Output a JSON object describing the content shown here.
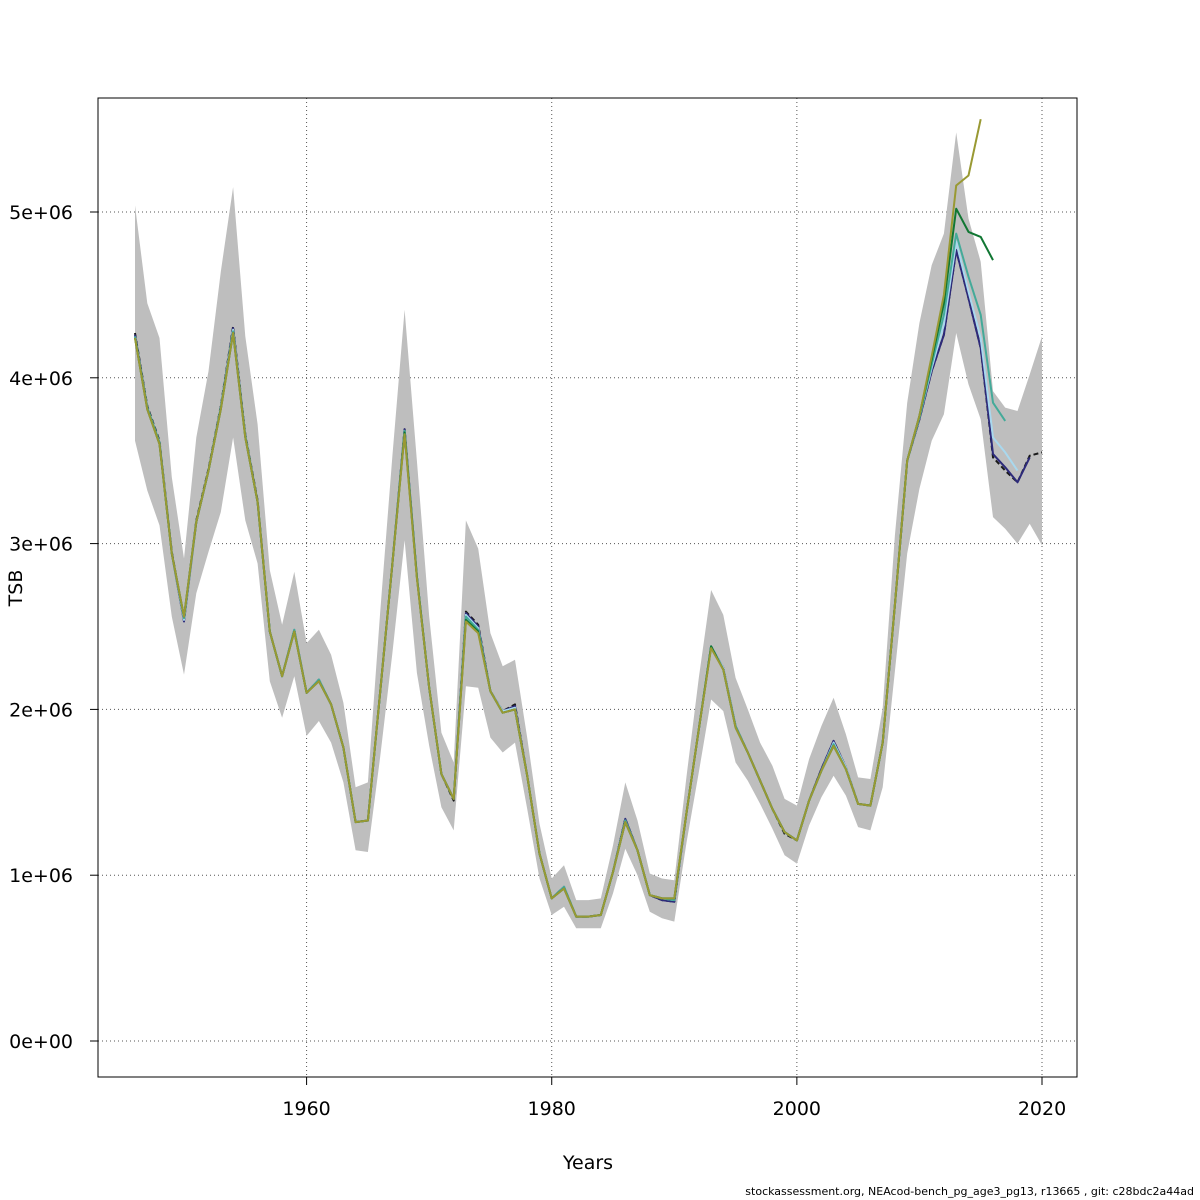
{
  "footer": "stockassessment.org, NEAcod-bench_pg_age3_pg13, r13665 , git: c28bdc2a44ad",
  "chart_data": {
    "type": "line",
    "xlabel": "Years",
    "ylabel": "TSB",
    "xlim": [
      1946,
      2020
    ],
    "ylim": [
      0,
      5600000
    ],
    "x_ticks": [
      1960,
      1980,
      2000,
      2020
    ],
    "y_ticks": [
      0,
      1000000,
      2000000,
      3000000,
      4000000,
      5000000
    ],
    "y_tick_labels": [
      "0e+00",
      "1e+06",
      "2e+06",
      "3e+06",
      "4e+06",
      "5e+06"
    ],
    "grid": true,
    "band_color": "#bebebe",
    "years": [
      1946,
      1947,
      1948,
      1949,
      1950,
      1951,
      1952,
      1953,
      1954,
      1955,
      1956,
      1957,
      1958,
      1959,
      1960,
      1961,
      1962,
      1963,
      1964,
      1965,
      1966,
      1967,
      1968,
      1969,
      1970,
      1971,
      1972,
      1973,
      1974,
      1975,
      1976,
      1977,
      1978,
      1979,
      1980,
      1981,
      1982,
      1983,
      1984,
      1985,
      1986,
      1987,
      1988,
      1989,
      1990,
      1991,
      1992,
      1993,
      1994,
      1995,
      1996,
      1997,
      1998,
      1999,
      2000,
      2001,
      2002,
      2003,
      2004,
      2005,
      2006,
      2007,
      2008,
      2009,
      2010,
      2011,
      2012,
      2013,
      2014,
      2015,
      2016,
      2017,
      2018,
      2019,
      2020
    ],
    "estimate": [
      4270000,
      3830000,
      3620000,
      2950000,
      2540000,
      3140000,
      3450000,
      3830000,
      4310000,
      3660000,
      3260000,
      2470000,
      2200000,
      2480000,
      2100000,
      2180000,
      2030000,
      1770000,
      1320000,
      1330000,
      2100000,
      2880000,
      3690000,
      2800000,
      2130000,
      1610000,
      1450000,
      2590000,
      2510000,
      2110000,
      1990000,
      2030000,
      1600000,
      1130000,
      860000,
      930000,
      750000,
      750000,
      760000,
      1020000,
      1340000,
      1150000,
      880000,
      850000,
      840000,
      1380000,
      1880000,
      2380000,
      2250000,
      1900000,
      1740000,
      1570000,
      1400000,
      1250000,
      1210000,
      1450000,
      1640000,
      1810000,
      1650000,
      1430000,
      1420000,
      1800000,
      2630000,
      3500000,
      3750000,
      4040000,
      4260000,
      4770000,
      4480000,
      4180000,
      3520000,
      3440000,
      3370000,
      3530000,
      3550000
    ],
    "lower": [
      3620000,
      3320000,
      3110000,
      2560000,
      2210000,
      2700000,
      2950000,
      3190000,
      3640000,
      3140000,
      2880000,
      2170000,
      1950000,
      2200000,
      1840000,
      1930000,
      1800000,
      1560000,
      1150000,
      1140000,
      1710000,
      2340000,
      3020000,
      2220000,
      1780000,
      1410000,
      1270000,
      2140000,
      2130000,
      1830000,
      1740000,
      1800000,
      1400000,
      980000,
      760000,
      810000,
      680000,
      680000,
      680000,
      890000,
      1160000,
      1000000,
      780000,
      740000,
      720000,
      1200000,
      1620000,
      2060000,
      1990000,
      1680000,
      1570000,
      1430000,
      1280000,
      1120000,
      1070000,
      1300000,
      1470000,
      1600000,
      1480000,
      1290000,
      1270000,
      1530000,
      2230000,
      2940000,
      3330000,
      3620000,
      3780000,
      4270000,
      3960000,
      3750000,
      3160000,
      3090000,
      3000000,
      3120000,
      2990000
    ],
    "upper": [
      5040000,
      4450000,
      4240000,
      3400000,
      2910000,
      3640000,
      4040000,
      4640000,
      5150000,
      4250000,
      3720000,
      2840000,
      2510000,
      2830000,
      2400000,
      2480000,
      2330000,
      2040000,
      1530000,
      1560000,
      2580000,
      3530000,
      4410000,
      3500000,
      2560000,
      1860000,
      1680000,
      3140000,
      2970000,
      2460000,
      2260000,
      2300000,
      1830000,
      1310000,
      980000,
      1060000,
      850000,
      850000,
      860000,
      1180000,
      1560000,
      1330000,
      1010000,
      980000,
      970000,
      1600000,
      2190000,
      2720000,
      2570000,
      2190000,
      2000000,
      1800000,
      1660000,
      1460000,
      1420000,
      1700000,
      1900000,
      2070000,
      1850000,
      1590000,
      1580000,
      2010000,
      3050000,
      3850000,
      4330000,
      4680000,
      4870000,
      5480000,
      4960000,
      4700000,
      3920000,
      3820000,
      3800000,
      4020000,
      4250000
    ],
    "series": [
      {
        "color": "#1a1a1a",
        "dash": true,
        "start": 1946,
        "values": [
          4270000,
          3830000,
          3620000,
          2950000,
          2540000,
          3140000,
          3450000,
          3830000,
          4310000,
          3660000,
          3260000,
          2470000,
          2200000,
          2480000,
          2100000,
          2180000,
          2030000,
          1770000,
          1320000,
          1330000,
          2100000,
          2880000,
          3690000,
          2800000,
          2130000,
          1610000,
          1450000,
          2590000,
          2510000,
          2110000,
          1990000,
          2030000,
          1600000,
          1130000,
          860000,
          930000,
          750000,
          750000,
          760000,
          1020000,
          1340000,
          1150000,
          880000,
          850000,
          840000,
          1380000,
          1880000,
          2380000,
          2250000,
          1900000,
          1740000,
          1570000,
          1400000,
          1250000,
          1210000,
          1450000,
          1640000,
          1810000,
          1650000,
          1430000,
          1420000,
          1800000,
          2630000,
          3500000,
          3750000,
          4040000,
          4260000,
          4770000,
          4480000,
          4180000,
          3520000,
          3440000,
          3370000,
          3530000,
          3550000
        ]
      },
      {
        "color": "#2d2a7a",
        "dash": false,
        "start": 1946,
        "values": [
          4260000,
          3820000,
          3610000,
          2940000,
          2530000,
          3130000,
          3440000,
          3820000,
          4300000,
          3650000,
          3250000,
          2470000,
          2200000,
          2480000,
          2100000,
          2180000,
          2030000,
          1770000,
          1320000,
          1330000,
          2100000,
          2880000,
          3690000,
          2800000,
          2130000,
          1610000,
          1460000,
          2580000,
          2500000,
          2110000,
          1990000,
          2020000,
          1600000,
          1130000,
          860000,
          930000,
          750000,
          750000,
          760000,
          1020000,
          1340000,
          1150000,
          880000,
          850000,
          840000,
          1380000,
          1880000,
          2380000,
          2250000,
          1900000,
          1740000,
          1570000,
          1400000,
          1260000,
          1210000,
          1450000,
          1640000,
          1810000,
          1650000,
          1430000,
          1420000,
          1800000,
          2630000,
          3500000,
          3750000,
          4040000,
          4260000,
          4770000,
          4480000,
          4180000,
          3540000,
          3460000,
          3370000,
          3520000
        ]
      },
      {
        "color": "#a9d8ee",
        "dash": false,
        "start": 1946,
        "values": [
          4250000,
          3820000,
          3610000,
          2940000,
          2540000,
          3130000,
          3440000,
          3820000,
          4290000,
          3650000,
          3250000,
          2470000,
          2200000,
          2480000,
          2100000,
          2180000,
          2030000,
          1770000,
          1320000,
          1330000,
          2100000,
          2880000,
          3680000,
          2800000,
          2130000,
          1610000,
          1460000,
          2570000,
          2490000,
          2110000,
          1990000,
          2010000,
          1600000,
          1130000,
          860000,
          930000,
          750000,
          750000,
          760000,
          1020000,
          1330000,
          1150000,
          880000,
          860000,
          850000,
          1380000,
          1880000,
          2380000,
          2250000,
          1900000,
          1740000,
          1570000,
          1400000,
          1260000,
          1210000,
          1450000,
          1630000,
          1800000,
          1650000,
          1430000,
          1420000,
          1800000,
          2630000,
          3500000,
          3760000,
          4060000,
          4320000,
          4820000,
          4520000,
          4240000,
          3640000,
          3550000,
          3440000
        ]
      },
      {
        "color": "#44aa99",
        "dash": false,
        "start": 1946,
        "values": [
          4250000,
          3820000,
          3610000,
          2940000,
          2550000,
          3130000,
          3440000,
          3820000,
          4280000,
          3650000,
          3250000,
          2470000,
          2200000,
          2480000,
          2100000,
          2180000,
          2030000,
          1770000,
          1320000,
          1330000,
          2100000,
          2880000,
          3680000,
          2800000,
          2130000,
          1610000,
          1460000,
          2560000,
          2480000,
          2110000,
          1980000,
          2000000,
          1600000,
          1130000,
          860000,
          930000,
          750000,
          750000,
          760000,
          1020000,
          1330000,
          1150000,
          880000,
          860000,
          850000,
          1380000,
          1880000,
          2380000,
          2240000,
          1900000,
          1740000,
          1570000,
          1400000,
          1260000,
          1210000,
          1450000,
          1630000,
          1790000,
          1640000,
          1430000,
          1420000,
          1800000,
          2630000,
          3500000,
          3760000,
          4080000,
          4380000,
          4870000,
          4610000,
          4380000,
          3850000,
          3740000
        ]
      },
      {
        "color": "#117733",
        "dash": false,
        "start": 1946,
        "values": [
          4240000,
          3810000,
          3600000,
          2940000,
          2560000,
          3130000,
          3440000,
          3810000,
          4270000,
          3640000,
          3250000,
          2470000,
          2200000,
          2470000,
          2100000,
          2170000,
          2030000,
          1770000,
          1320000,
          1330000,
          2100000,
          2880000,
          3670000,
          2800000,
          2130000,
          1610000,
          1460000,
          2540000,
          2470000,
          2110000,
          1980000,
          2000000,
          1600000,
          1130000,
          860000,
          920000,
          750000,
          750000,
          760000,
          1020000,
          1320000,
          1150000,
          880000,
          860000,
          860000,
          1380000,
          1880000,
          2380000,
          2240000,
          1890000,
          1740000,
          1570000,
          1400000,
          1260000,
          1210000,
          1450000,
          1630000,
          1780000,
          1640000,
          1430000,
          1420000,
          1800000,
          2630000,
          3500000,
          3770000,
          4110000,
          4450000,
          5020000,
          4880000,
          4850000,
          4710000
        ]
      },
      {
        "color": "#999933",
        "dash": false,
        "start": 1946,
        "values": [
          4240000,
          3810000,
          3600000,
          2940000,
          2560000,
          3130000,
          3440000,
          3810000,
          4270000,
          3640000,
          3250000,
          2470000,
          2200000,
          2470000,
          2100000,
          2170000,
          2030000,
          1770000,
          1320000,
          1330000,
          2100000,
          2880000,
          3660000,
          2790000,
          2130000,
          1610000,
          1460000,
          2530000,
          2460000,
          2110000,
          1980000,
          2000000,
          1600000,
          1130000,
          860000,
          920000,
          750000,
          750000,
          760000,
          1020000,
          1320000,
          1150000,
          880000,
          860000,
          860000,
          1380000,
          1880000,
          2370000,
          2240000,
          1890000,
          1740000,
          1570000,
          1400000,
          1260000,
          1210000,
          1450000,
          1630000,
          1780000,
          1640000,
          1430000,
          1420000,
          1800000,
          2630000,
          3500000,
          3770000,
          4130000,
          4500000,
          5160000,
          5220000,
          5560000
        ]
      }
    ]
  }
}
